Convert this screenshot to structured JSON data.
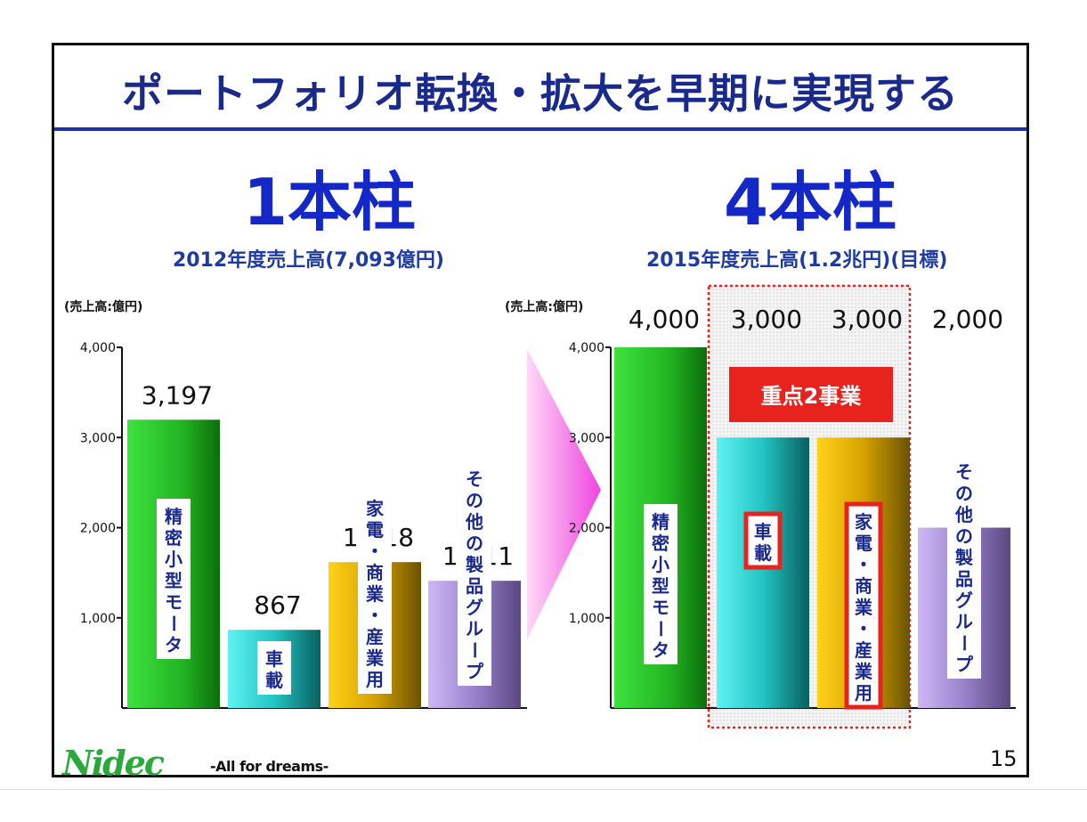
{
  "title": "ポートフォリオ転換・拡大を早期に実現する",
  "left_panel": {
    "pillar": "1本柱",
    "subtitle": "2012年度売上高(7,093億円)",
    "unit": "(売上高:億円)"
  },
  "right_panel": {
    "pillar": "4本柱",
    "subtitle": "2015年度売上高(1.2兆円)(目標)",
    "unit": "(売上高:億円)",
    "highlight_label": "重点2事業"
  },
  "colors": {
    "title": "#1a2a8c",
    "pillar": "#1428c8",
    "highlight_red": "#e8231e",
    "green": "#2ecc2e",
    "cyan": "#22c8c8",
    "gold": "#d9a800",
    "purple": "#b7a0e6"
  },
  "chart_data": [
    {
      "type": "bar",
      "categories": [
        "精密小型モータ",
        "車載",
        "家電・商業・産業用",
        "その他の製品グループ"
      ],
      "values": [
        3197,
        867,
        1618,
        1411
      ],
      "value_labels": [
        "3,197",
        "867",
        "1,618",
        "1,411"
      ],
      "ylim": [
        0,
        4000
      ],
      "yticks": [
        "4,000",
        "3,000",
        "2,000",
        "1,000"
      ]
    },
    {
      "type": "bar",
      "categories": [
        "精密小型モータ",
        "車載",
        "家電・商業・産業用",
        "その他の製品グループ"
      ],
      "values": [
        4000,
        3000,
        3000,
        2000
      ],
      "value_labels": [
        "4,000",
        "3,000",
        "3,000",
        "2,000"
      ],
      "ylim": [
        0,
        4000
      ],
      "yticks": [
        "4,000",
        "3,000",
        "2,000",
        "1,000"
      ]
    }
  ],
  "footer": {
    "logo": "Nidec",
    "tagline": "-All for dreams-",
    "page": "15"
  }
}
